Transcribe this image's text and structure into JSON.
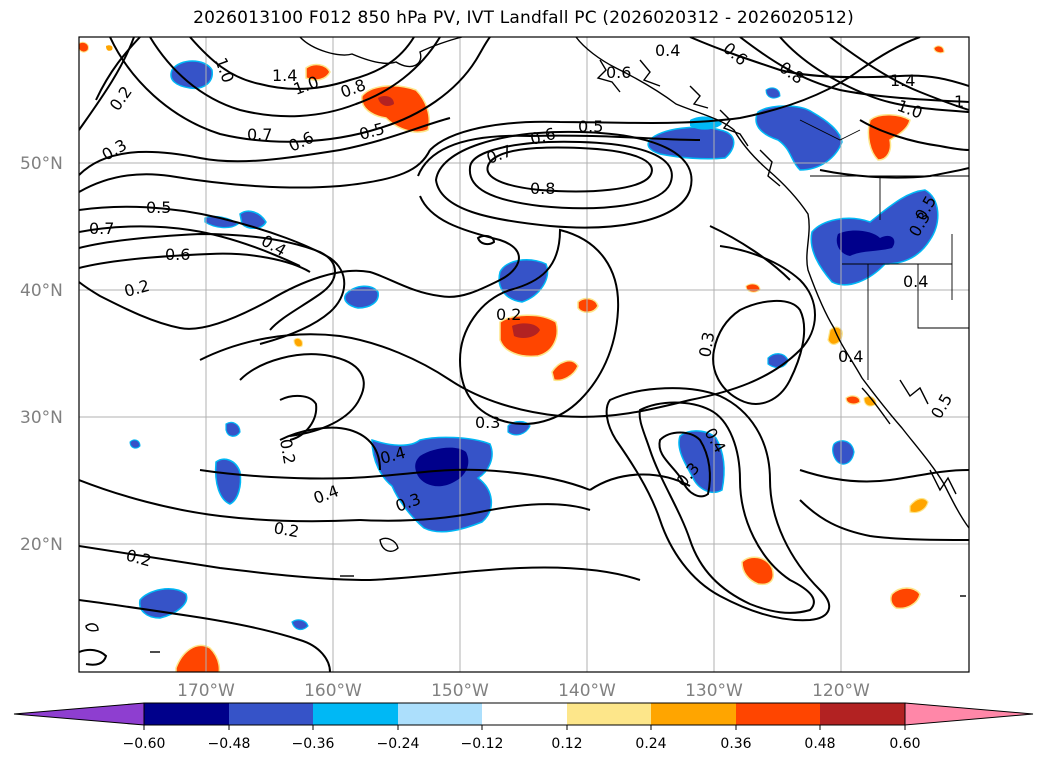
{
  "title": "2026013100 F012 850 hPa PV, IVT Landfall PC (2026020312 - 2026020512)",
  "colors": {
    "gridline": "#b0b0b0",
    "contour": "#000000",
    "coast": "#000000",
    "axis_label": "#808080"
  },
  "lat_labels": [
    "50°N",
    "40°N",
    "30°N",
    "20°N"
  ],
  "lon_labels": [
    "170°W",
    "160°W",
    "150°W",
    "140°W",
    "130°W",
    "120°W"
  ],
  "contour_labels": [
    "1.0",
    "1.4",
    "1.0",
    "0.8",
    "0.7",
    "0.6",
    "0.5",
    "0.2",
    "0.3",
    "0.5",
    "0.7",
    "0.6",
    "0.2",
    "0.4",
    "0.7",
    "0.6",
    "0.5",
    "0.8",
    "0.4",
    "0.6",
    "0.8",
    "1.4",
    "1.0",
    "1",
    "0.2",
    "0.3",
    "0.2",
    "0.3",
    "0.4",
    "0.3",
    "0.4",
    "0.2",
    "0.2",
    "0.3",
    "0.4",
    "0.3",
    "0.4",
    "0.5",
    "0.4",
    "0.5",
    "0.6"
  ],
  "colorbar": {
    "ticks": [
      "−0.60",
      "−0.48",
      "−0.36",
      "−0.24",
      "−0.12",
      "0.12",
      "0.24",
      "0.36",
      "0.48",
      "0.60"
    ],
    "colors": [
      "#8e3ed0",
      "#00008b",
      "#3653c8",
      "#00b8f5",
      "#acdffc",
      "#ffffff",
      "#fde68a",
      "#ffa500",
      "#ff4500",
      "#b22222",
      "#ff87a8"
    ]
  }
}
